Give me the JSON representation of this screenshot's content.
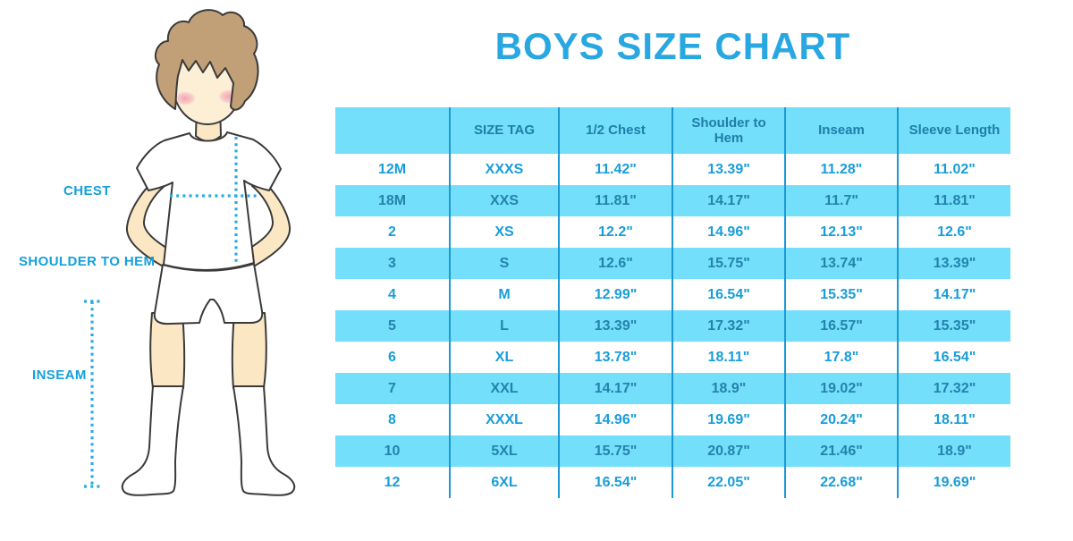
{
  "title": "BOYS SIZE CHART",
  "colors": {
    "title_blue": "#29A7E0",
    "stripe_cyan": "#73DFFA",
    "text_blue_on_white": "#189DD9",
    "text_blue_on_cyan": "#2383AD",
    "divider_blue": "#1C99D4",
    "label_blue": "#14A0DB",
    "dotted_line_blue": "#29ABE2",
    "skin": "#FBE7C3",
    "face": "#FCEFD6",
    "hair_brown": "#C2A077",
    "blush_pink": "#F2A8B8"
  },
  "figure": {
    "labels": {
      "chest": "CHEST",
      "shoulder_to_hem": "SHOULDER TO HEM",
      "inseam": "INSEAM"
    }
  },
  "chart_data": {
    "type": "table",
    "title": "BOYS SIZE CHART",
    "columns": [
      "",
      "SIZE TAG",
      "1/2 Chest",
      "Shoulder to Hem",
      "Inseam",
      "Sleeve Length"
    ],
    "rows": [
      [
        "12M",
        "XXXS",
        "11.42\"",
        "13.39\"",
        "11.28\"",
        "11.02\""
      ],
      [
        "18M",
        "XXS",
        "11.81\"",
        "14.17\"",
        "11.7\"",
        "11.81\""
      ],
      [
        "2",
        "XS",
        "12.2\"",
        "14.96\"",
        "12.13\"",
        "12.6\""
      ],
      [
        "3",
        "S",
        "12.6\"",
        "15.75\"",
        "13.74\"",
        "13.39\""
      ],
      [
        "4",
        "M",
        "12.99\"",
        "16.54\"",
        "15.35\"",
        "14.17\""
      ],
      [
        "5",
        "L",
        "13.39\"",
        "17.32\"",
        "16.57\"",
        "15.35\""
      ],
      [
        "6",
        "XL",
        "13.78\"",
        "18.11\"",
        "17.8\"",
        "16.54\""
      ],
      [
        "7",
        "XXL",
        "14.17\"",
        "18.9\"",
        "19.02\"",
        "17.32\""
      ],
      [
        "8",
        "XXXL",
        "14.96\"",
        "19.69\"",
        "20.24\"",
        "18.11\""
      ],
      [
        "10",
        "5XL",
        "15.75\"",
        "20.87\"",
        "21.46\"",
        "18.9\""
      ],
      [
        "12",
        "6XL",
        "16.54\"",
        "22.05\"",
        "22.68\"",
        "19.69\""
      ]
    ]
  }
}
